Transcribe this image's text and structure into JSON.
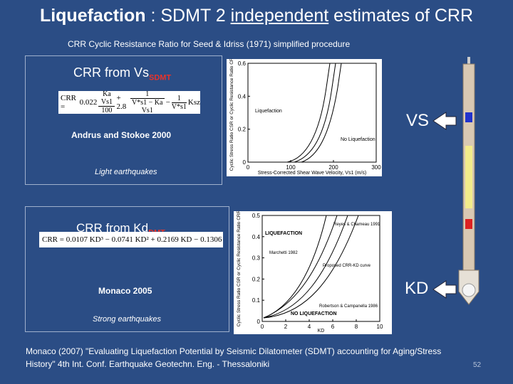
{
  "header": {
    "title_bold": "Liquefaction",
    "title_mid": " : SDMT 2 ",
    "title_underlined": "independent",
    "title_end": " estimates of CRR",
    "subtitle": "CRR Cyclic Resistance Ratio for Seed & Idriss (1971) simplified procedure"
  },
  "panel1": {
    "heading": "CRR from Vs",
    "heading_sub": "SDMT",
    "formula": {
      "lhs": "CRR =",
      "a": "0.022",
      "frac1_num": "Ka Vs1",
      "frac1_den": "100",
      "b": "+ 2.8",
      "frac2_num": "1",
      "frac2_den": "V*s1 − Ka Vs1",
      "c": "−",
      "frac3_num": "1",
      "frac3_den": "V*s1",
      "d": "Ksz"
    },
    "reference": "Andrus and Stokoe 2000",
    "note": "Light earthquakes",
    "figure": {
      "ylabel": "Cyclic Stress Ratio CSR or Cyclic Resistance Ratio CRR",
      "xlabel": "Stress-Corrected Shear Wave Velocity, Vs1 (m/s)",
      "xlim": [
        0,
        300
      ],
      "xticks": [
        0,
        100,
        200,
        300
      ],
      "ylim": [
        0,
        0.6
      ],
      "yticks": [
        0,
        0.2,
        0.4,
        0.6
      ],
      "annotations": [
        "Liquefaction",
        "No Liquefaction"
      ]
    }
  },
  "panel2": {
    "heading": "CRR from Kd",
    "heading_sub": "DMT",
    "formula": "CRR = 0.0107 KD³ − 0.0741 KD² + 0.2169 KD − 0.1306",
    "reference": "Monaco 2005",
    "note": "Strong earthquakes",
    "figure": {
      "ylabel": "Cyclic Stress Ratio CSR or Cyclic Resistance Ratio CRR",
      "xlabel": "KD",
      "xlim": [
        0,
        10
      ],
      "xticks": [
        0,
        2,
        4,
        6,
        8,
        10
      ],
      "ylim": [
        0,
        0.5
      ],
      "yticks": [
        0,
        0.1,
        0.2,
        0.3,
        0.4,
        0.5
      ],
      "annotations": [
        "LIQUEFACTION",
        "NO LIQUEFACTION",
        "Reyes & Chameau 1991",
        "Marchetti 1982",
        "Proposed CRR-KD curve",
        "Robertson & Campanella 1986"
      ]
    }
  },
  "labels": {
    "vs": "VS",
    "kd": "KD"
  },
  "footer": {
    "citation": "Monaco (2007) \"Evaluating Liquefaction Potential by Seismic Dilatometer (SDMT) accounting for Aging/Stress History\" 4th Int. Conf. Earthquake Geotechn. Eng. - Thessaloniki",
    "page": "52"
  }
}
